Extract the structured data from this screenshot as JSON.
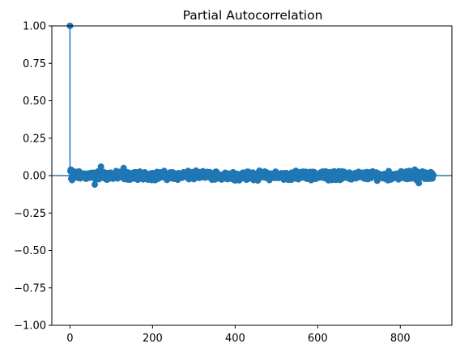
{
  "chart_data": {
    "type": "scatter",
    "title": "Partial Autocorrelation",
    "xlabel": "",
    "ylabel": "",
    "xlim": [
      -44,
      925
    ],
    "ylim": [
      -1.0,
      1.0
    ],
    "xticks": [
      0,
      200,
      400,
      600,
      800
    ],
    "yticks": [
      -1.0,
      -0.75,
      -0.5,
      -0.25,
      0.0,
      0.25,
      0.5,
      0.75,
      1.0
    ],
    "xtick_labels": [
      "0",
      "200",
      "400",
      "600",
      "800"
    ],
    "ytick_labels": [
      "−1.00",
      "−0.75",
      "−0.50",
      "−0.25",
      "0.00",
      "0.25",
      "0.50",
      "0.75",
      "1.00"
    ],
    "grid": false,
    "series": [
      {
        "x_start": 0,
        "x_end": 880,
        "lag0_value": 1.0,
        "first_lags": [
          0.03,
          0.04,
          -0.02,
          0.02,
          -0.03,
          0.01,
          -0.02,
          0.03
        ],
        "typical_range": [
          -0.06,
          0.06
        ],
        "notable_points": [
          [
            60,
            -0.06
          ],
          [
            75,
            0.06
          ],
          [
            130,
            0.05
          ],
          [
            845,
            -0.05
          ],
          [
            835,
            0.04
          ]
        ],
        "color": "#1f77b4"
      }
    ],
    "zero_line": 0.0
  }
}
